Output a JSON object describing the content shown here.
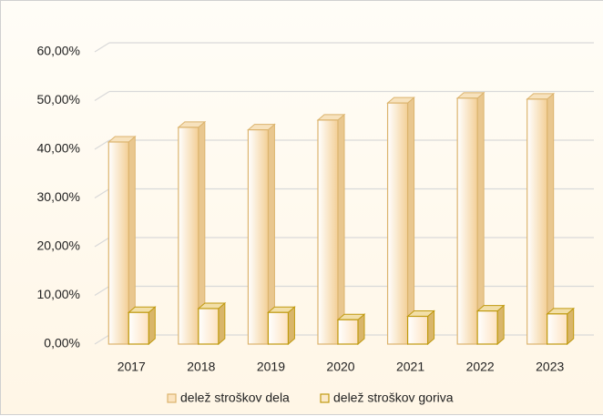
{
  "chart_data": {
    "type": "bar3d",
    "categories": [
      "2017",
      "2018",
      "2019",
      "2020",
      "2021",
      "2022",
      "2023"
    ],
    "series": [
      {
        "name": "delež stroškov dela",
        "color": "#f3cf96",
        "values": [
          41.5,
          44.5,
          44,
          46,
          49.5,
          50.5,
          50.3
        ]
      },
      {
        "name": "delež stroškov goriva",
        "color": "#c09a10",
        "values": [
          6.5,
          7.3,
          6.5,
          5,
          5.7,
          6.8,
          6.2
        ]
      }
    ],
    "ylim": [
      0,
      60
    ],
    "yticks": [
      {
        "value": 0,
        "label": "0,00%"
      },
      {
        "value": 10,
        "label": "10,00%"
      },
      {
        "value": 20,
        "label": "20,00%"
      },
      {
        "value": 30,
        "label": "30,00%"
      },
      {
        "value": 40,
        "label": "40,00%"
      },
      {
        "value": 50,
        "label": "50,00%"
      },
      {
        "value": 60,
        "label": "60,00%"
      }
    ],
    "grid": true,
    "legend": "bottom"
  }
}
